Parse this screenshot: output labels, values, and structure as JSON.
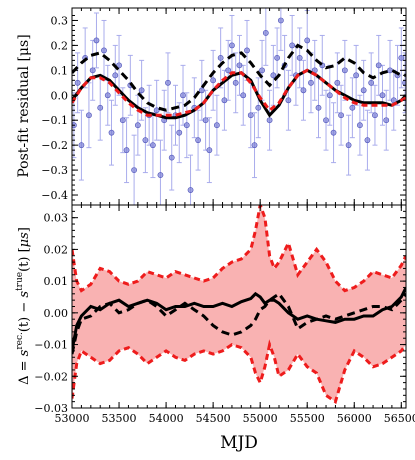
{
  "chart_data": [
    {
      "type": "scatter",
      "ylabel": "Post-fit residual [μs]",
      "xlabel": "",
      "xlim": [
        53000,
        56550
      ],
      "ylim": [
        -0.44,
        0.35
      ],
      "x_ticks": [
        53000,
        53500,
        54000,
        54500,
        55000,
        55500,
        56000,
        56500
      ],
      "y_ticks": [
        -0.4,
        -0.3,
        -0.2,
        -0.1,
        0.0,
        0.1,
        0.2,
        0.3
      ],
      "y_tick_labels": [
        "−0.4",
        "−0.3",
        "−0.2",
        "−0.1",
        "0.0",
        "0.1",
        "0.2",
        "0.3"
      ],
      "colors": {
        "points": "#7b7fd6",
        "errorbars": "#a9acec",
        "black_dashed": "#000000",
        "black_solid": "#000000",
        "red_dashed": "#ee1c1c"
      },
      "residuals": {
        "x": [
          53020,
          53060,
          53100,
          53140,
          53180,
          53220,
          53260,
          53300,
          53340,
          53380,
          53420,
          53460,
          53500,
          53540,
          53580,
          53620,
          53660,
          53700,
          53740,
          53780,
          53820,
          53860,
          53900,
          53940,
          53980,
          54020,
          54060,
          54100,
          54140,
          54180,
          54220,
          54260,
          54300,
          54340,
          54380,
          54420,
          54460,
          54500,
          54540,
          54580,
          54620,
          54660,
          54700,
          54740,
          54780,
          54820,
          54860,
          54900,
          54940,
          54980,
          55020,
          55060,
          55100,
          55140,
          55180,
          55220,
          55260,
          55300,
          55340,
          55380,
          55420,
          55460,
          55500,
          55540,
          55580,
          55620,
          55660,
          55700,
          55740,
          55780,
          55820,
          55860,
          55900,
          55940,
          55980,
          56020,
          56060,
          56100,
          56140,
          56180,
          56220,
          56260,
          56300,
          56340,
          56380,
          56420,
          56460,
          56500,
          56540
        ],
        "y": [
          -0.12,
          0.05,
          -0.2,
          0.15,
          -0.08,
          0.1,
          0.22,
          -0.05,
          0.18,
          0.0,
          -0.15,
          0.08,
          0.12,
          -0.1,
          -0.22,
          0.04,
          -0.3,
          -0.12,
          0.02,
          -0.18,
          -0.08,
          -0.2,
          -0.06,
          -0.32,
          -0.1,
          0.05,
          -0.25,
          -0.08,
          -0.15,
          0.0,
          -0.12,
          -0.38,
          -0.05,
          -0.18,
          0.02,
          -0.1,
          -0.22,
          0.06,
          -0.12,
          0.15,
          -0.02,
          0.1,
          0.2,
          0.05,
          0.12,
          0.0,
          0.18,
          -0.08,
          -0.2,
          -0.05,
          0.1,
          0.25,
          -0.1,
          0.08,
          0.15,
          0.3,
          0.12,
          -0.02,
          0.2,
          0.08,
          0.15,
          0.02,
          0.22,
          0.05,
          0.1,
          -0.05,
          0.12,
          -0.1,
          0.0,
          -0.15,
          0.05,
          -0.08,
          0.1,
          -0.2,
          -0.05,
          0.08,
          -0.12,
          0.02,
          -0.18,
          0.05,
          -0.08,
          0.12,
          0.0,
          -0.1,
          0.1,
          -0.02,
          0.08,
          0.15,
          0.05
        ],
        "err": [
          0.13,
          0.12,
          0.14,
          0.12,
          0.13,
          0.12,
          0.11,
          0.13,
          0.12,
          0.12,
          0.13,
          0.12,
          0.12,
          0.13,
          0.13,
          0.12,
          0.14,
          0.12,
          0.12,
          0.13,
          0.12,
          0.13,
          0.12,
          0.14,
          0.12,
          0.12,
          0.13,
          0.12,
          0.12,
          0.12,
          0.13,
          0.14,
          0.12,
          0.12,
          0.12,
          0.12,
          0.13,
          0.12,
          0.12,
          0.12,
          0.12,
          0.12,
          0.12,
          0.12,
          0.12,
          0.12,
          0.12,
          0.13,
          0.13,
          0.12,
          0.12,
          0.13,
          0.12,
          0.12,
          0.12,
          0.12,
          0.12,
          0.12,
          0.12,
          0.12,
          0.12,
          0.12,
          0.12,
          0.12,
          0.12,
          0.12,
          0.12,
          0.12,
          0.12,
          0.12,
          0.12,
          0.12,
          0.12,
          0.12,
          0.12,
          0.12,
          0.12,
          0.12,
          0.12,
          0.12,
          0.12,
          0.12,
          0.12,
          0.12,
          0.12,
          0.12,
          0.12,
          0.12,
          0.12
        ]
      },
      "curves": {
        "x": [
          53000,
          53100,
          53200,
          53300,
          53400,
          53500,
          53600,
          53700,
          53800,
          53900,
          54000,
          54100,
          54200,
          54300,
          54400,
          54500,
          54600,
          54700,
          54800,
          54900,
          55000,
          55100,
          55200,
          55300,
          55400,
          55500,
          55600,
          55700,
          55800,
          55900,
          56000,
          56100,
          56200,
          56300,
          56400,
          56500,
          56550
        ],
        "black_dashed": [
          0.09,
          0.13,
          0.16,
          0.17,
          0.14,
          0.1,
          0.06,
          0.01,
          -0.03,
          -0.05,
          -0.06,
          -0.05,
          -0.04,
          -0.01,
          0.04,
          0.09,
          0.13,
          0.16,
          0.17,
          0.13,
          0.08,
          0.04,
          0.08,
          0.15,
          0.2,
          0.18,
          0.14,
          0.11,
          0.12,
          0.15,
          0.13,
          0.09,
          0.07,
          0.09,
          0.1,
          0.08,
          0.08
        ],
        "black_solid": [
          -0.02,
          0.03,
          0.07,
          0.08,
          0.06,
          0.02,
          -0.02,
          -0.05,
          -0.07,
          -0.08,
          -0.09,
          -0.09,
          -0.08,
          -0.06,
          -0.03,
          0.02,
          0.05,
          0.08,
          0.09,
          0.06,
          -0.02,
          -0.08,
          -0.04,
          0.03,
          0.08,
          0.1,
          0.08,
          0.05,
          0.02,
          0.0,
          -0.02,
          -0.03,
          -0.03,
          -0.03,
          -0.04,
          -0.02,
          0.0
        ],
        "red_dashed": [
          -0.03,
          0.03,
          0.07,
          0.07,
          0.05,
          0.01,
          -0.03,
          -0.06,
          -0.08,
          -0.08,
          -0.08,
          -0.08,
          -0.07,
          -0.06,
          -0.03,
          0.02,
          0.06,
          0.09,
          0.09,
          0.05,
          -0.01,
          -0.06,
          -0.03,
          0.03,
          0.08,
          0.1,
          0.08,
          0.05,
          0.02,
          -0.01,
          -0.03,
          -0.04,
          -0.04,
          -0.04,
          -0.04,
          -0.02,
          -0.01
        ]
      }
    },
    {
      "type": "line",
      "ylabel": "Δ = s^rec.(t) − s^true(t) [μs]",
      "ylabel_parts": {
        "a": "Δ = ",
        "s1": "s",
        "sup1": "rec.",
        "b": "(t) − ",
        "s2": "s",
        "sup2": "true",
        "c": "(t) [",
        "mu": "μs",
        "d": "]"
      },
      "xlabel": "MJD",
      "xlim": [
        53000,
        56550
      ],
      "ylim": [
        -0.03,
        0.034
      ],
      "x_ticks": [
        53000,
        53500,
        54000,
        54500,
        55000,
        55500,
        56000,
        56500
      ],
      "x_tick_labels": [
        "53000",
        "53500",
        "54000",
        "54500",
        "55000",
        "55500",
        "56000",
        "56500"
      ],
      "y_ticks": [
        -0.03,
        -0.02,
        -0.01,
        0.0,
        0.01,
        0.02,
        0.03
      ],
      "y_tick_labels": [
        "−0.03",
        "−0.02",
        "−0.01",
        "0.00",
        "0.01",
        "0.02",
        "0.03"
      ],
      "colors": {
        "band_fill": "#f9b2b2",
        "band_edge": "#ee1c1c",
        "black_solid": "#000000",
        "black_dashed": "#000000"
      },
      "x": [
        53000,
        53050,
        53100,
        53200,
        53300,
        53400,
        53500,
        53600,
        53700,
        53800,
        53900,
        54000,
        54100,
        54200,
        54300,
        54400,
        54500,
        54600,
        54700,
        54800,
        54900,
        54950,
        55000,
        55050,
        55100,
        55150,
        55200,
        55300,
        55400,
        55500,
        55600,
        55700,
        55800,
        55900,
        56000,
        56100,
        56200,
        56300,
        56400,
        56500,
        56550
      ],
      "band_upper": [
        0.02,
        0.01,
        0.007,
        0.009,
        0.014,
        0.013,
        0.01,
        0.009,
        0.01,
        0.013,
        0.012,
        0.011,
        0.013,
        0.012,
        0.011,
        0.01,
        0.011,
        0.014,
        0.016,
        0.017,
        0.02,
        0.026,
        0.034,
        0.03,
        0.018,
        0.014,
        0.016,
        0.022,
        0.012,
        0.016,
        0.02,
        0.016,
        0.01,
        0.007,
        0.008,
        0.01,
        0.013,
        0.012,
        0.011,
        0.015,
        0.018
      ],
      "band_lower": [
        -0.027,
        -0.016,
        -0.012,
        -0.014,
        -0.016,
        -0.015,
        -0.012,
        -0.011,
        -0.013,
        -0.016,
        -0.014,
        -0.012,
        -0.014,
        -0.015,
        -0.013,
        -0.012,
        -0.013,
        -0.012,
        -0.01,
        -0.011,
        -0.014,
        -0.019,
        -0.022,
        -0.017,
        -0.01,
        -0.014,
        -0.02,
        -0.018,
        -0.013,
        -0.017,
        -0.019,
        -0.026,
        -0.028,
        -0.018,
        -0.012,
        -0.014,
        -0.017,
        -0.016,
        -0.014,
        -0.012,
        -0.01
      ],
      "black_solid": [
        -0.012,
        -0.004,
        -0.001,
        0.002,
        0.001,
        0.003,
        0.004,
        0.002,
        0.003,
        0.004,
        0.003,
        0.001,
        0.002,
        0.002,
        0.003,
        0.002,
        0.002,
        0.003,
        0.002,
        0.0035,
        0.0045,
        0.006,
        0.005,
        0.003,
        0.004,
        0.004,
        0.003,
        0.0,
        -0.002,
        -0.001,
        -0.002,
        -0.0025,
        -0.003,
        -0.002,
        -0.002,
        -0.001,
        -0.001,
        0.001,
        0.002,
        0.005,
        0.008
      ],
      "black_dashed": [
        -0.013,
        -0.006,
        -0.002,
        -0.001,
        0.002,
        0.003,
        0.0,
        0.001,
        0.003,
        0.004,
        0.002,
        -0.001,
        0.001,
        0.003,
        0.001,
        -0.001,
        -0.004,
        -0.006,
        -0.007,
        -0.006,
        -0.004,
        -0.002,
        0.001,
        0.002,
        0.004,
        0.005,
        0.006,
        0.002,
        -0.005,
        -0.003,
        -0.002,
        -0.001,
        -0.002,
        -0.001,
        0.0,
        0.001,
        0.002,
        0.002,
        0.001,
        0.004,
        0.006
      ]
    }
  ]
}
